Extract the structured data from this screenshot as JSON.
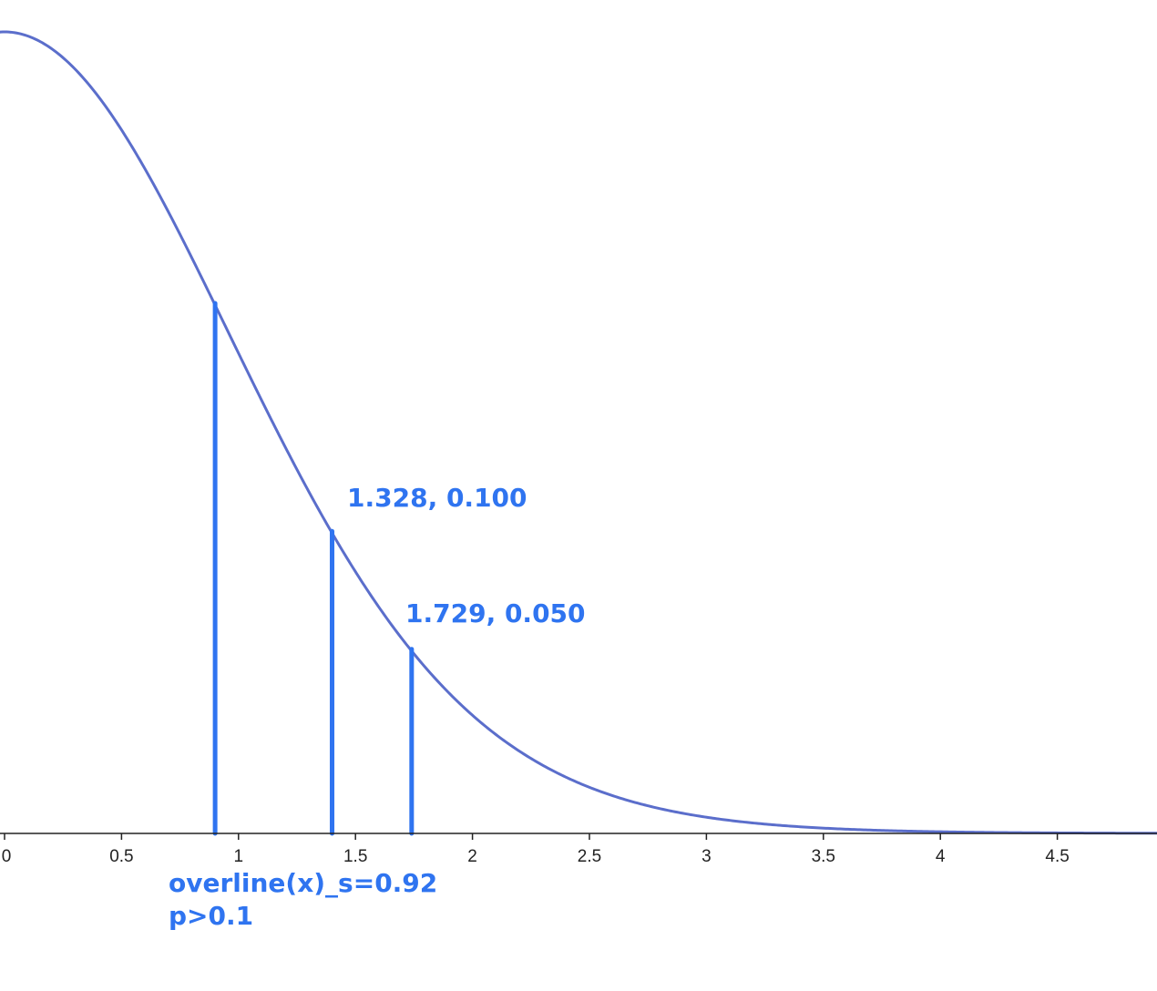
{
  "chart_data": {
    "type": "line",
    "title": "",
    "xlabel": "",
    "ylabel": "",
    "xlim": [
      0,
      4.95
    ],
    "ylim": [
      0,
      0.4
    ],
    "grid": false,
    "legend": "none",
    "x_ticks": [
      {
        "value": 0,
        "label": "0"
      },
      {
        "value": 0.5,
        "label": "0.5"
      },
      {
        "value": 1,
        "label": "1"
      },
      {
        "value": 1.5,
        "label": "1.5"
      },
      {
        "value": 2,
        "label": "2"
      },
      {
        "value": 2.5,
        "label": "2.5"
      },
      {
        "value": 3,
        "label": "3"
      },
      {
        "value": 3.5,
        "label": "3.5"
      },
      {
        "value": 4,
        "label": "4"
      },
      {
        "value": 4.5,
        "label": "4.5"
      }
    ],
    "curve": {
      "description_function": "Student t density, 20 degrees of freedom, right half",
      "df": 20,
      "color": "#5b6ecb"
    },
    "markers": [
      {
        "x": 0.9,
        "color": "#2f74f0"
      },
      {
        "x": 1.4,
        "color": "#2f74f0"
      },
      {
        "x": 1.74,
        "color": "#2f74f0"
      }
    ],
    "annotations": [
      {
        "id": "critical-10",
        "text": "1.328, 0.100",
        "anchor_x": 1.4
      },
      {
        "id": "critical-05",
        "text": "1.729, 0.050",
        "anchor_x": 1.74
      }
    ],
    "statistic_label": {
      "line1": "overline(x)_s=0.92",
      "line2": "p>0.1"
    },
    "colors": {
      "curve": "#5b6ecb",
      "marker": "#2f74f0",
      "annotation": "#2f74f0",
      "axis": "#222222"
    }
  }
}
